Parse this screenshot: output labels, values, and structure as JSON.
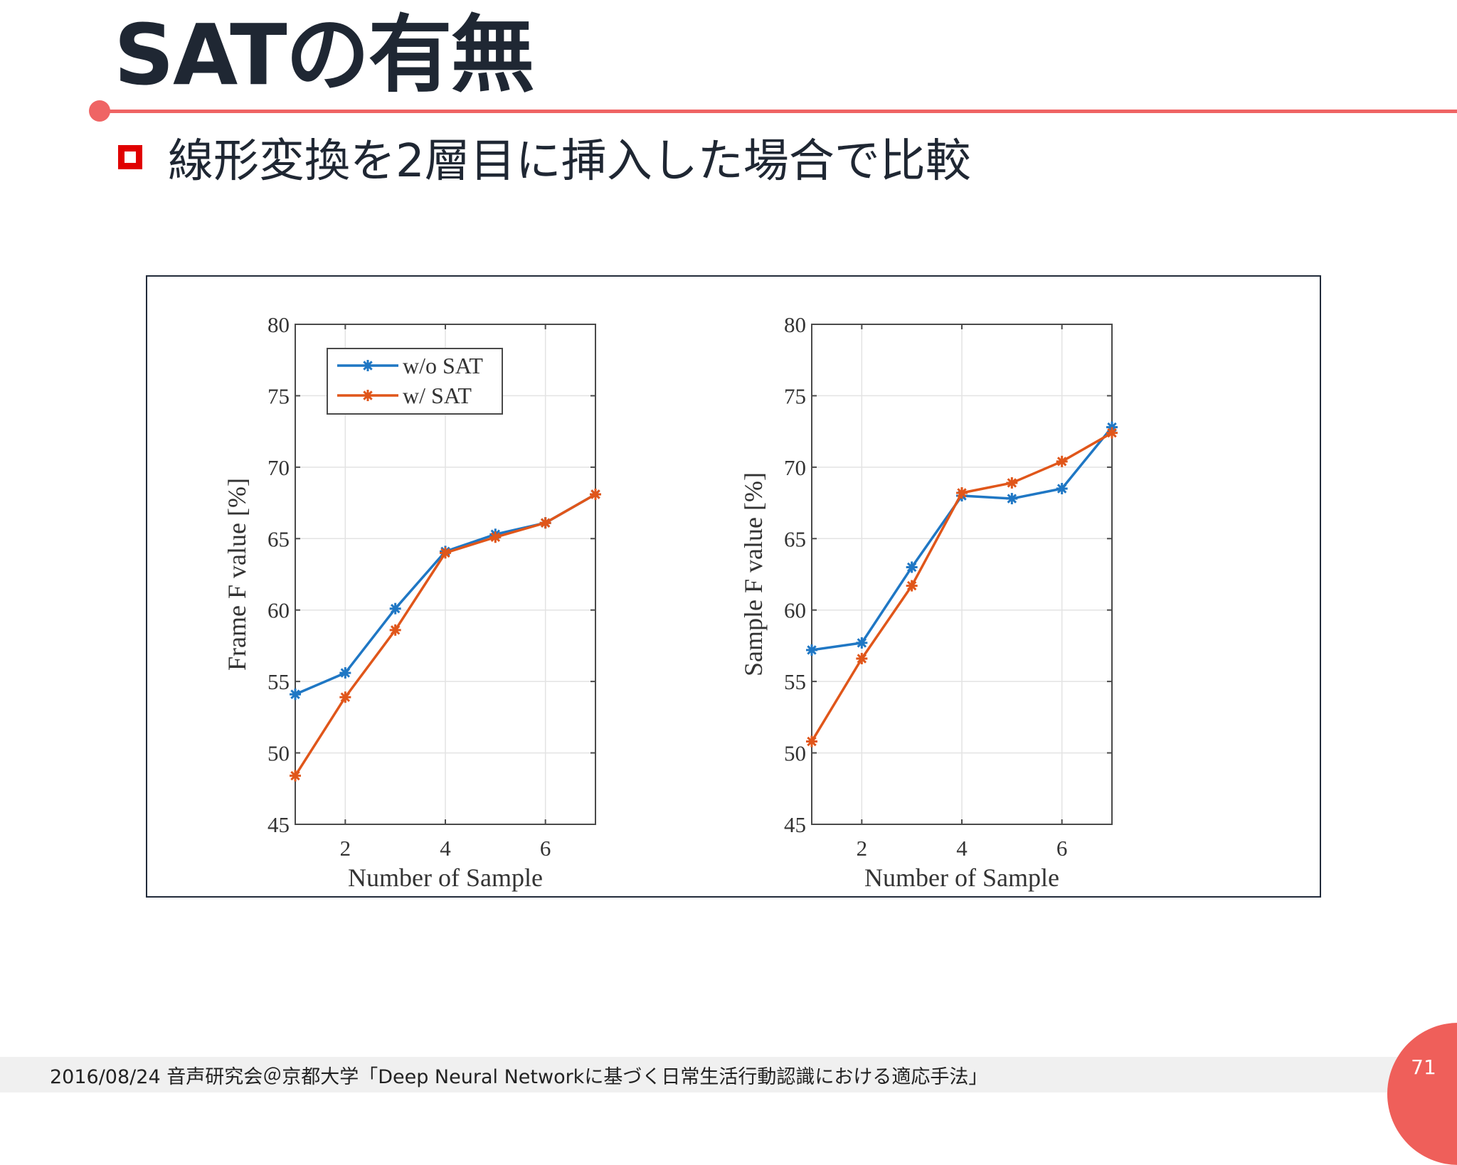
{
  "slide": {
    "title": "SATの有無",
    "bullet": "線形変換を2層目に挿入した場合で比較"
  },
  "footer": {
    "text": "2016/08/24  音声研究会＠京都大学「Deep Neural Networkに基づく日常生活行動認識における適応手法」",
    "page": "71"
  },
  "colors": {
    "accent": "#ef6464",
    "bullet": "#e00000",
    "series_blue": "#1f77c4",
    "series_orange": "#e0561a"
  },
  "chart_data": [
    {
      "type": "line",
      "xlabel": "Number of Sample",
      "ylabel": "Frame F value [%]",
      "xlim": [
        1,
        7
      ],
      "ylim": [
        45,
        80
      ],
      "xticks": [
        2,
        4,
        6
      ],
      "yticks": [
        45,
        50,
        55,
        60,
        65,
        70,
        75,
        80
      ],
      "grid": true,
      "legend": "top-left",
      "x": [
        1,
        2,
        3,
        4,
        5,
        6,
        7
      ],
      "series": [
        {
          "name": "w/o SAT",
          "color": "#1f77c4",
          "values": [
            54.1,
            55.6,
            60.1,
            64.1,
            65.3,
            66.1,
            68.1
          ]
        },
        {
          "name": "w/ SAT",
          "color": "#e0561a",
          "values": [
            48.4,
            53.9,
            58.6,
            64.0,
            65.1,
            66.1,
            68.1
          ]
        }
      ]
    },
    {
      "type": "line",
      "xlabel": "Number of Sample",
      "ylabel": "Sample F value [%]",
      "xlim": [
        1,
        7
      ],
      "ylim": [
        45,
        80
      ],
      "xticks": [
        2,
        4,
        6
      ],
      "yticks": [
        45,
        50,
        55,
        60,
        65,
        70,
        75,
        80
      ],
      "grid": true,
      "legend": "none",
      "x": [
        1,
        2,
        3,
        4,
        5,
        6,
        7
      ],
      "series": [
        {
          "name": "w/o SAT",
          "color": "#1f77c4",
          "values": [
            57.2,
            57.7,
            63.0,
            68.0,
            67.8,
            68.5,
            72.8
          ]
        },
        {
          "name": "w/ SAT",
          "color": "#e0561a",
          "values": [
            50.8,
            56.6,
            61.7,
            68.2,
            68.9,
            70.4,
            72.4
          ]
        }
      ]
    }
  ]
}
